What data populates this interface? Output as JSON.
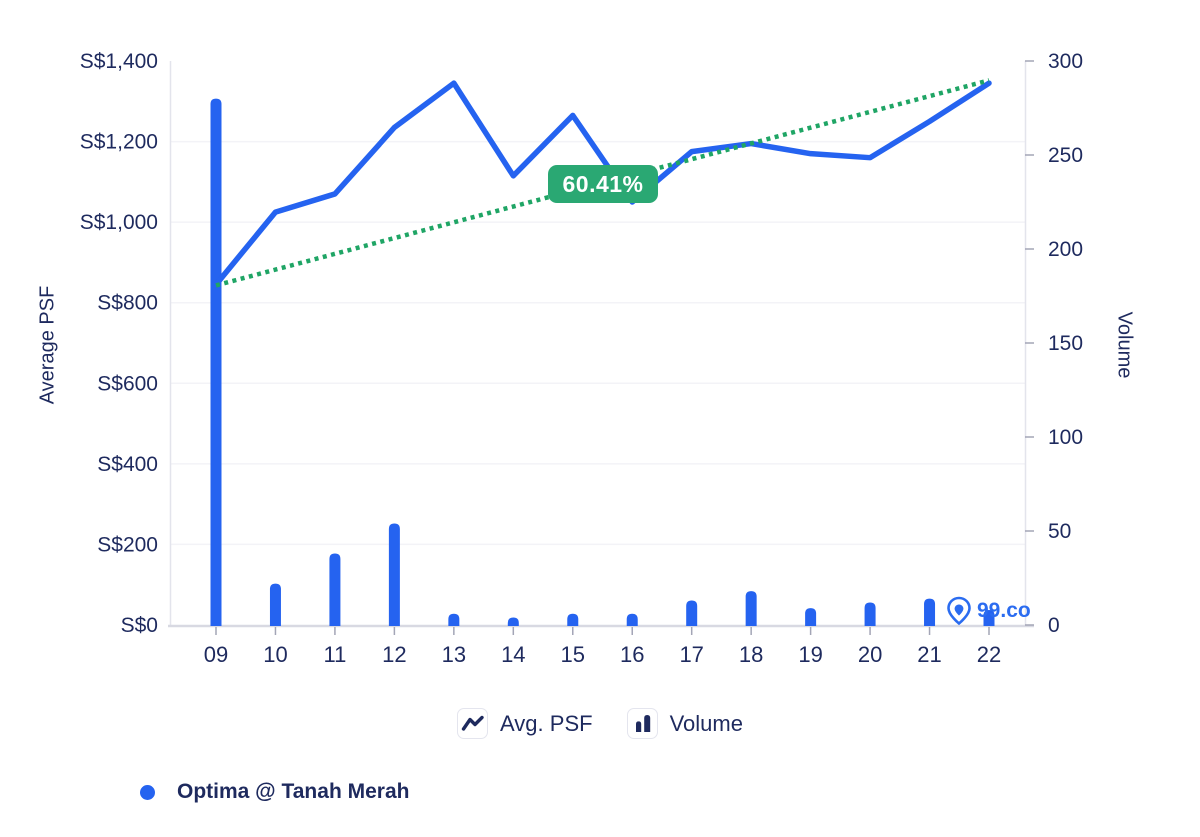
{
  "colors": {
    "accent_blue": "#2563f0",
    "trend_green": "#1fa565",
    "badge_green": "#2aa873",
    "navy_text": "#1e2a5e",
    "gridline": "#f3f3f7",
    "axis_line": "#e3e4ec",
    "tick": "#a3a5b6",
    "bottom_axis": "#d8d9e2",
    "watermark_blue": "#2b6cf0"
  },
  "chart_data": {
    "type": "line+bar",
    "categories": [
      "09",
      "10",
      "11",
      "12",
      "13",
      "14",
      "15",
      "16",
      "17",
      "18",
      "19",
      "20",
      "21",
      "22"
    ],
    "series": [
      {
        "name": "Avg. PSF",
        "type": "line",
        "axis": "left",
        "color": "#2563f0",
        "values": [
          845,
          1025,
          1070,
          1235,
          1345,
          1115,
          1265,
          1050,
          1175,
          1195,
          1170,
          1160,
          1250,
          1345
        ]
      },
      {
        "name": "Volume",
        "type": "bar",
        "axis": "right",
        "color": "#2563f0",
        "values": [
          280,
          22,
          38,
          54,
          6,
          4,
          6,
          6,
          13,
          18,
          9,
          12,
          14,
          8
        ]
      },
      {
        "name": "Trend",
        "type": "dotted_line",
        "axis": "left",
        "color": "#1fa565",
        "endpoints": [
          843,
          1352
        ],
        "label": "60.41%"
      }
    ],
    "left_axis": {
      "title": "Average PSF",
      "min": 0,
      "max": 1400,
      "tick_step": 200,
      "tick_labels": [
        "S$0",
        "S$200",
        "S$400",
        "S$600",
        "S$800",
        "S$1,000",
        "S$1,200",
        "S$1,400"
      ]
    },
    "right_axis": {
      "title": "Volume",
      "min": 0,
      "max": 300,
      "tick_step": 50,
      "tick_labels": [
        "0",
        "50",
        "100",
        "150",
        "200",
        "250",
        "300"
      ]
    },
    "growth_badge": "60.41%",
    "legend": [
      {
        "label": "Avg. PSF",
        "icon": "line-zigzag-icon"
      },
      {
        "label": "Volume",
        "icon": "bar-chart-icon"
      }
    ],
    "series_legend": {
      "label": "Optima @ Tanah Merah",
      "marker_color": "#2563f0"
    },
    "watermark": {
      "text": "99.co",
      "icon": "location-pin-icon"
    }
  }
}
